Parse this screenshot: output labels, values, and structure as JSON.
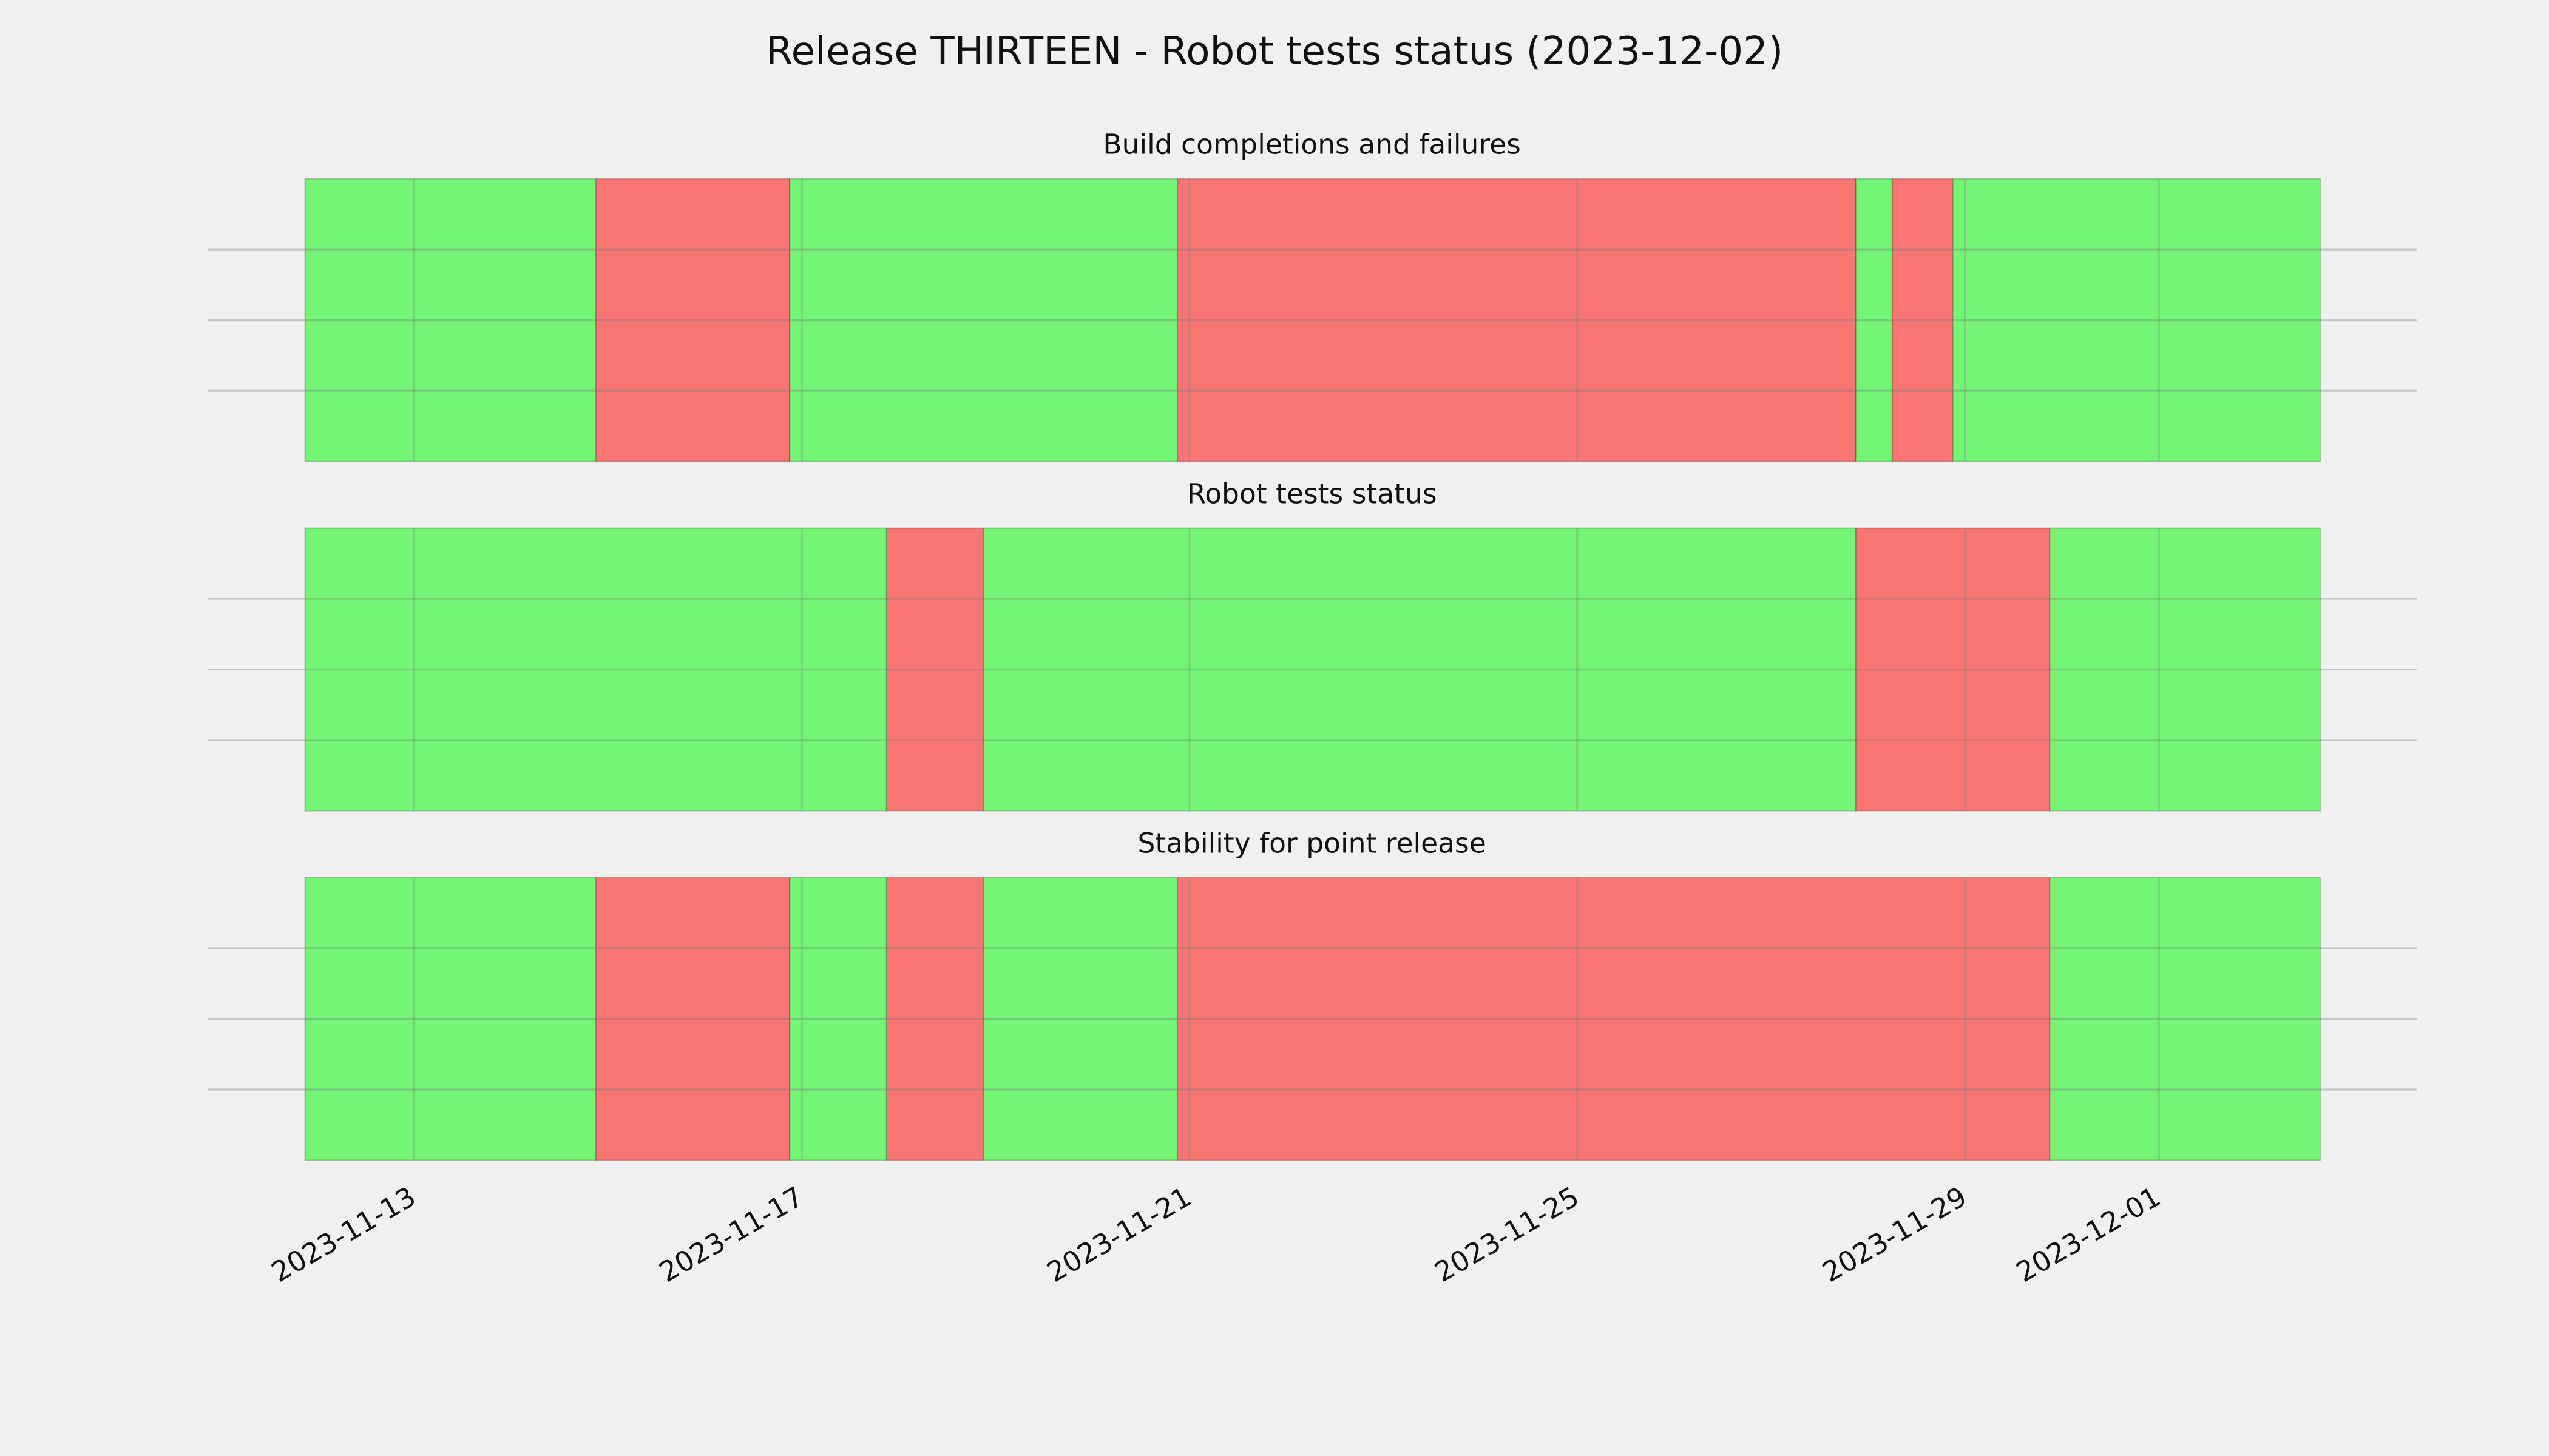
{
  "title": "Release THIRTEEN - Robot tests status (2023-12-02)",
  "xlim": [
    "2023-11-10T21:00",
    "2023-12-03T16:00"
  ],
  "xticks": [
    "2023-11-13",
    "2023-11-17",
    "2023-11-21",
    "2023-11-25",
    "2023-11-29",
    "2023-12-01"
  ],
  "grid": true,
  "chart_data": [
    {
      "type": "timeline",
      "title": "Build completions and failures",
      "ylim": [
        0,
        1
      ],
      "yticks": [
        0.25,
        0.5,
        0.75
      ],
      "starts": [
        "2023-11-11T21:00",
        "2023-11-14T21:00",
        "2023-11-16T21:00",
        "2023-11-20T21:00",
        "2023-11-27T21:00",
        "2023-11-28T06:00",
        "2023-11-28T21:00"
      ],
      "ends": [
        "2023-11-14T21:00",
        "2023-11-16T21:00",
        "2023-11-20T21:00",
        "2023-11-27T21:00",
        "2023-11-28T06:00",
        "2023-11-28T21:00",
        "2023-12-02T16:00"
      ],
      "colors": [
        "#75f576",
        "#f77674",
        "#75f576",
        "#f77674",
        "#75f576",
        "#f77674",
        "#75f576"
      ]
    },
    {
      "type": "timeline",
      "title": "Robot tests status",
      "ylim": [
        0,
        1
      ],
      "yticks": [
        0.25,
        0.5,
        0.75
      ],
      "starts": [
        "2023-11-11T21:00",
        "2023-11-17T21:00",
        "2023-11-18T21:00",
        "2023-11-27T21:00",
        "2023-11-29T21:00"
      ],
      "ends": [
        "2023-11-17T21:00",
        "2023-11-18T21:00",
        "2023-11-27T21:00",
        "2023-11-29T21:00",
        "2023-12-02T16:00"
      ],
      "colors": [
        "#75f576",
        "#f77674",
        "#75f576",
        "#f77674",
        "#75f576"
      ]
    },
    {
      "type": "timeline",
      "title": "Stability for point release",
      "ylim": [
        0,
        1
      ],
      "yticks": [
        0.25,
        0.5,
        0.75
      ],
      "starts": [
        "2023-11-11T21:00",
        "2023-11-14T21:00",
        "2023-11-16T21:00",
        "2023-11-17T21:00",
        "2023-11-18T21:00",
        "2023-11-20T21:00",
        "2023-11-29T21:00"
      ],
      "ends": [
        "2023-11-14T21:00",
        "2023-11-16T21:00",
        "2023-11-17T21:00",
        "2023-11-18T21:00",
        "2023-11-20T21:00",
        "2023-11-29T21:00",
        "2023-12-02T16:00"
      ],
      "colors": [
        "#75f576",
        "#f77674",
        "#75f576",
        "#f77674",
        "#75f576",
        "#f77674",
        "#75f576"
      ]
    }
  ]
}
